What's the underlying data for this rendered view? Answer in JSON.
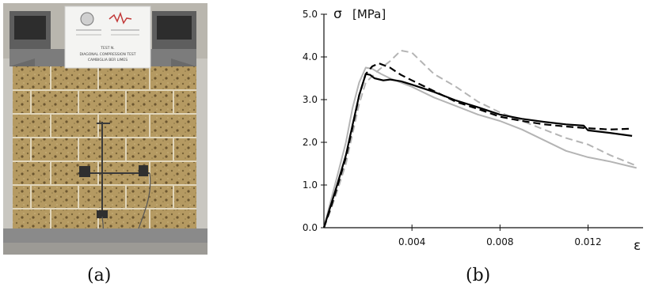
{
  "captions": {
    "a": "(a)",
    "b": "(b)"
  },
  "photo": {
    "sign_line1": "TEST N.",
    "sign_line2": "DIAGONAL COMPRESSION TEST",
    "sign_line3": "CAMBIGLIA BER LIMES",
    "colors": {
      "tuff": "#b59a62",
      "frame": "#6d6d6d",
      "steel": "#3a3a3a"
    }
  },
  "chart_data": {
    "type": "line",
    "title": "",
    "ylabel_symbol": "σ",
    "ylabel_unit": "[MPa]",
    "xlabel": "ε",
    "xlim": [
      0,
      0.0145
    ],
    "ylim": [
      0,
      5.0
    ],
    "grid": false,
    "xticks": [
      0.004,
      0.008,
      0.012
    ],
    "xtick_labels": [
      "0.004",
      "0.008",
      "0.012"
    ],
    "yticks": [
      0,
      1,
      2,
      3,
      4,
      5
    ],
    "ytick_labels": [
      "0.0",
      "1.0",
      "2.0",
      "3.0",
      "4.0",
      "5.0"
    ],
    "series": [
      {
        "style": "solid-black",
        "color": "#000000",
        "dash": "",
        "x": [
          0,
          0.0003,
          0.0006,
          0.001,
          0.0013,
          0.0016,
          0.0019,
          0.0021,
          0.0023,
          0.0027,
          0.003,
          0.0035,
          0.004,
          0.005,
          0.006,
          0.007,
          0.008,
          0.009,
          0.01,
          0.011,
          0.0118,
          0.012,
          0.013,
          0.014
        ],
        "y": [
          0,
          0.5,
          1.0,
          1.7,
          2.4,
          3.1,
          3.6,
          3.58,
          3.5,
          3.45,
          3.47,
          3.43,
          3.35,
          3.18,
          2.98,
          2.82,
          2.65,
          2.55,
          2.48,
          2.42,
          2.39,
          2.28,
          2.22,
          2.15
        ]
      },
      {
        "style": "dashed-black",
        "color": "#000000",
        "dash": "9 5",
        "x": [
          0,
          0.0003,
          0.0006,
          0.001,
          0.0013,
          0.0016,
          0.0019,
          0.0022,
          0.0025,
          0.003,
          0.0035,
          0.004,
          0.005,
          0.006,
          0.007,
          0.008,
          0.009,
          0.01,
          0.011,
          0.012,
          0.013,
          0.014
        ],
        "y": [
          0,
          0.45,
          0.95,
          1.65,
          2.35,
          3.1,
          3.6,
          3.78,
          3.85,
          3.75,
          3.58,
          3.45,
          3.2,
          2.95,
          2.78,
          2.6,
          2.5,
          2.42,
          2.37,
          2.33,
          2.3,
          2.32
        ]
      },
      {
        "style": "solid-gray",
        "color": "#b4b4b4",
        "dash": "",
        "x": [
          0,
          0.0003,
          0.0006,
          0.001,
          0.0013,
          0.0016,
          0.0019,
          0.0022,
          0.0026,
          0.003,
          0.0035,
          0.004,
          0.005,
          0.006,
          0.007,
          0.008,
          0.009,
          0.01,
          0.011,
          0.012,
          0.013,
          0.0142
        ],
        "y": [
          0,
          0.6,
          1.2,
          2.0,
          2.8,
          3.4,
          3.75,
          3.72,
          3.6,
          3.5,
          3.4,
          3.3,
          3.05,
          2.85,
          2.65,
          2.5,
          2.3,
          2.05,
          1.8,
          1.65,
          1.55,
          1.4
        ]
      },
      {
        "style": "dashed-gray",
        "color": "#b4b4b4",
        "dash": "9 5",
        "x": [
          0,
          0.0003,
          0.0006,
          0.001,
          0.0013,
          0.0016,
          0.0019,
          0.0022,
          0.0025,
          0.003,
          0.0035,
          0.004,
          0.0045,
          0.005,
          0.006,
          0.007,
          0.008,
          0.009,
          0.01,
          0.011,
          0.012,
          0.013,
          0.0142
        ],
        "y": [
          0,
          0.4,
          0.85,
          1.5,
          2.2,
          2.9,
          3.4,
          3.55,
          3.7,
          3.9,
          4.15,
          4.1,
          3.85,
          3.6,
          3.3,
          2.95,
          2.7,
          2.5,
          2.3,
          2.1,
          1.95,
          1.7,
          1.45
        ]
      }
    ]
  }
}
